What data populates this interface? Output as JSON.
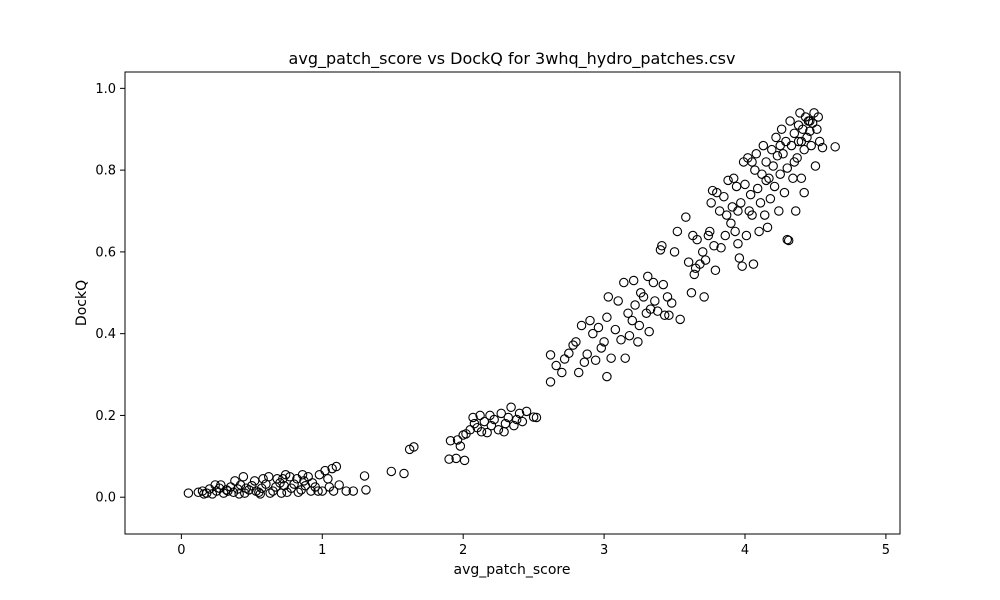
{
  "chart_data": {
    "type": "scatter",
    "title": "avg_patch_score vs DockQ for 3whq_hydro_patches.csv",
    "xlabel": "avg_patch_score",
    "ylabel": "DockQ",
    "xlim": [
      -0.4,
      5.1
    ],
    "ylim": [
      -0.09,
      1.04
    ],
    "xticks": [
      0,
      1,
      2,
      3,
      4,
      5
    ],
    "yticks": [
      0.0,
      0.2,
      0.4,
      0.6,
      0.8,
      1.0
    ],
    "xtick_labels": [
      "0",
      "1",
      "2",
      "3",
      "4",
      "5"
    ],
    "ytick_labels": [
      "0.0",
      "0.2",
      "0.4",
      "0.6",
      "0.8",
      "1.0"
    ],
    "grid": false,
    "legend": "none",
    "marker": "open-circle",
    "colors": {
      "marker_edge": "#000000",
      "axes": "#000000",
      "background": "#ffffff"
    },
    "points": [
      [
        0.05,
        0.01
      ],
      [
        0.12,
        0.012
      ],
      [
        0.15,
        0.015
      ],
      [
        0.18,
        0.01
      ],
      [
        0.2,
        0.02
      ],
      [
        0.22,
        0.008
      ],
      [
        0.25,
        0.015
      ],
      [
        0.27,
        0.022
      ],
      [
        0.3,
        0.01
      ],
      [
        0.32,
        0.018
      ],
      [
        0.35,
        0.025
      ],
      [
        0.37,
        0.012
      ],
      [
        0.4,
        0.02
      ],
      [
        0.42,
        0.03
      ],
      [
        0.44,
        0.05
      ],
      [
        0.45,
        0.01
      ],
      [
        0.48,
        0.018
      ],
      [
        0.5,
        0.028
      ],
      [
        0.52,
        0.04
      ],
      [
        0.55,
        0.012
      ],
      [
        0.57,
        0.022
      ],
      [
        0.6,
        0.032
      ],
      [
        0.62,
        0.05
      ],
      [
        0.65,
        0.015
      ],
      [
        0.67,
        0.025
      ],
      [
        0.7,
        0.035
      ],
      [
        0.72,
        0.045
      ],
      [
        0.74,
        0.055
      ],
      [
        0.75,
        0.012
      ],
      [
        0.78,
        0.022
      ],
      [
        0.8,
        0.032
      ],
      [
        0.82,
        0.045
      ],
      [
        0.85,
        0.018
      ],
      [
        0.88,
        0.028
      ],
      [
        0.9,
        0.05
      ],
      [
        0.92,
        0.015
      ],
      [
        0.95,
        0.025
      ],
      [
        0.98,
        0.055
      ],
      [
        1.0,
        0.015
      ],
      [
        1.02,
        0.065
      ],
      [
        1.05,
        0.025
      ],
      [
        1.07,
        0.07
      ],
      [
        1.08,
        0.015
      ],
      [
        1.1,
        0.075
      ],
      [
        1.12,
        0.03
      ],
      [
        1.17,
        0.015
      ],
      [
        1.22,
        0.015
      ],
      [
        1.3,
        0.052
      ],
      [
        1.31,
        0.018
      ],
      [
        0.28,
        0.03
      ],
      [
        0.33,
        0.015
      ],
      [
        0.38,
        0.04
      ],
      [
        0.46,
        0.022
      ],
      [
        0.53,
        0.015
      ],
      [
        0.58,
        0.045
      ],
      [
        0.63,
        0.01
      ],
      [
        0.68,
        0.045
      ],
      [
        0.73,
        0.028
      ],
      [
        0.77,
        0.05
      ],
      [
        0.83,
        0.012
      ],
      [
        0.87,
        0.04
      ],
      [
        0.93,
        0.035
      ],
      [
        0.97,
        0.015
      ],
      [
        0.16,
        0.008
      ],
      [
        0.24,
        0.03
      ],
      [
        0.41,
        0.008
      ],
      [
        0.56,
        0.008
      ],
      [
        0.71,
        0.01
      ],
      [
        0.86,
        0.055
      ],
      [
        1.04,
        0.045
      ],
      [
        1.49,
        0.063
      ],
      [
        1.58,
        0.058
      ],
      [
        1.62,
        0.117
      ],
      [
        1.65,
        0.123
      ],
      [
        1.9,
        0.093
      ],
      [
        1.91,
        0.138
      ],
      [
        1.95,
        0.095
      ],
      [
        1.96,
        0.14
      ],
      [
        1.98,
        0.125
      ],
      [
        2.0,
        0.152
      ],
      [
        2.01,
        0.09
      ],
      [
        2.02,
        0.155
      ],
      [
        2.05,
        0.165
      ],
      [
        2.07,
        0.195
      ],
      [
        2.08,
        0.18
      ],
      [
        2.1,
        0.17
      ],
      [
        2.12,
        0.2
      ],
      [
        2.13,
        0.16
      ],
      [
        2.15,
        0.185
      ],
      [
        2.17,
        0.158
      ],
      [
        2.19,
        0.2
      ],
      [
        2.2,
        0.175
      ],
      [
        2.22,
        0.19
      ],
      [
        2.25,
        0.165
      ],
      [
        2.27,
        0.205
      ],
      [
        2.29,
        0.16
      ],
      [
        2.3,
        0.18
      ],
      [
        2.32,
        0.195
      ],
      [
        2.34,
        0.22
      ],
      [
        2.36,
        0.175
      ],
      [
        2.38,
        0.19
      ],
      [
        2.4,
        0.205
      ],
      [
        2.42,
        0.185
      ],
      [
        2.45,
        0.21
      ],
      [
        2.5,
        0.196
      ],
      [
        2.52,
        0.195
      ],
      [
        2.62,
        0.348
      ],
      [
        2.62,
        0.282
      ],
      [
        2.66,
        0.322
      ],
      [
        2.7,
        0.305
      ],
      [
        2.72,
        0.338
      ],
      [
        2.75,
        0.352
      ],
      [
        2.78,
        0.372
      ],
      [
        2.8,
        0.38
      ],
      [
        2.82,
        0.305
      ],
      [
        2.84,
        0.42
      ],
      [
        2.86,
        0.33
      ],
      [
        2.88,
        0.35
      ],
      [
        2.9,
        0.432
      ],
      [
        2.92,
        0.4
      ],
      [
        2.94,
        0.335
      ],
      [
        2.96,
        0.415
      ],
      [
        2.98,
        0.365
      ],
      [
        3.0,
        0.38
      ],
      [
        3.02,
        0.44
      ],
      [
        3.02,
        0.295
      ],
      [
        3.03,
        0.49
      ],
      [
        3.05,
        0.34
      ],
      [
        3.08,
        0.41
      ],
      [
        3.1,
        0.48
      ],
      [
        3.12,
        0.385
      ],
      [
        3.14,
        0.525
      ],
      [
        3.15,
        0.34
      ],
      [
        3.17,
        0.45
      ],
      [
        3.18,
        0.395
      ],
      [
        3.2,
        0.432
      ],
      [
        3.21,
        0.53
      ],
      [
        3.22,
        0.47
      ],
      [
        3.24,
        0.38
      ],
      [
        3.25,
        0.42
      ],
      [
        3.26,
        0.5
      ],
      [
        3.28,
        0.49
      ],
      [
        3.3,
        0.45
      ],
      [
        3.31,
        0.54
      ],
      [
        3.32,
        0.405
      ],
      [
        3.33,
        0.46
      ],
      [
        3.35,
        0.525
      ],
      [
        3.36,
        0.48
      ],
      [
        3.38,
        0.455
      ],
      [
        3.4,
        0.605
      ],
      [
        3.41,
        0.615
      ],
      [
        3.42,
        0.52
      ],
      [
        3.43,
        0.445
      ],
      [
        3.45,
        0.49
      ],
      [
        3.46,
        0.445
      ],
      [
        3.48,
        0.475
      ],
      [
        3.5,
        0.6
      ],
      [
        3.52,
        0.65
      ],
      [
        3.54,
        0.435
      ],
      [
        3.58,
        0.685
      ],
      [
        3.6,
        0.575
      ],
      [
        3.62,
        0.5
      ],
      [
        3.63,
        0.64
      ],
      [
        3.64,
        0.545
      ],
      [
        3.65,
        0.56
      ],
      [
        3.66,
        0.63
      ],
      [
        3.68,
        0.57
      ],
      [
        3.7,
        0.6
      ],
      [
        3.71,
        0.49
      ],
      [
        3.72,
        0.58
      ],
      [
        3.74,
        0.64
      ],
      [
        3.75,
        0.65
      ],
      [
        3.76,
        0.72
      ],
      [
        3.77,
        0.75
      ],
      [
        3.78,
        0.615
      ],
      [
        3.79,
        0.555
      ],
      [
        3.8,
        0.745
      ],
      [
        3.82,
        0.7
      ],
      [
        3.83,
        0.61
      ],
      [
        3.85,
        0.735
      ],
      [
        3.86,
        0.64
      ],
      [
        3.87,
        0.69
      ],
      [
        3.88,
        0.775
      ],
      [
        3.9,
        0.67
      ],
      [
        3.91,
        0.71
      ],
      [
        3.92,
        0.78
      ],
      [
        3.93,
        0.65
      ],
      [
        3.94,
        0.76
      ],
      [
        3.95,
        0.62
      ],
      [
        3.96,
        0.585
      ],
      [
        3.97,
        0.72
      ],
      [
        3.98,
        0.565
      ],
      [
        3.99,
        0.82
      ],
      [
        4.0,
        0.765
      ],
      [
        4.01,
        0.64
      ],
      [
        4.02,
        0.83
      ],
      [
        4.03,
        0.7
      ],
      [
        4.04,
        0.74
      ],
      [
        4.05,
        0.69
      ],
      [
        4.06,
        0.57
      ],
      [
        4.07,
        0.8
      ],
      [
        4.08,
        0.84
      ],
      [
        4.09,
        0.755
      ],
      [
        4.1,
        0.65
      ],
      [
        4.11,
        0.72
      ],
      [
        4.12,
        0.79
      ],
      [
        4.13,
        0.86
      ],
      [
        4.14,
        0.69
      ],
      [
        4.15,
        0.82
      ],
      [
        4.16,
        0.66
      ],
      [
        4.17,
        0.78
      ],
      [
        4.18,
        0.73
      ],
      [
        4.19,
        0.85
      ],
      [
        4.2,
        0.81
      ],
      [
        4.21,
        0.76
      ],
      [
        4.22,
        0.88
      ],
      [
        4.23,
        0.835
      ],
      [
        4.24,
        0.7
      ],
      [
        4.25,
        0.79
      ],
      [
        4.26,
        0.9
      ],
      [
        4.27,
        0.84
      ],
      [
        4.28,
        0.745
      ],
      [
        4.29,
        0.87
      ],
      [
        4.3,
        0.805
      ],
      [
        4.3,
        0.63
      ],
      [
        4.31,
        0.628
      ],
      [
        4.32,
        0.92
      ],
      [
        4.33,
        0.86
      ],
      [
        4.34,
        0.78
      ],
      [
        4.35,
        0.89
      ],
      [
        4.36,
        0.7
      ],
      [
        4.37,
        0.83
      ],
      [
        4.38,
        0.91
      ],
      [
        4.39,
        0.94
      ],
      [
        4.4,
        0.87
      ],
      [
        4.41,
        0.9
      ],
      [
        4.42,
        0.85
      ],
      [
        4.43,
        0.93
      ],
      [
        4.44,
        0.88
      ],
      [
        4.45,
        0.92
      ],
      [
        4.46,
        0.895
      ],
      [
        4.47,
        0.86
      ],
      [
        4.48,
        0.915
      ],
      [
        4.49,
        0.94
      ],
      [
        4.5,
        0.81
      ],
      [
        4.51,
        0.9
      ],
      [
        4.52,
        0.93
      ],
      [
        4.53,
        0.87
      ],
      [
        4.55,
        0.855
      ],
      [
        4.4,
        0.78
      ],
      [
        4.42,
        0.745
      ],
      [
        4.35,
        0.82
      ],
      [
        4.25,
        0.86
      ],
      [
        4.15,
        0.775
      ],
      [
        4.05,
        0.82
      ],
      [
        3.95,
        0.7
      ],
      [
        4.38,
        0.87
      ],
      [
        4.46,
        0.92
      ],
      [
        4.64,
        0.857
      ]
    ]
  }
}
